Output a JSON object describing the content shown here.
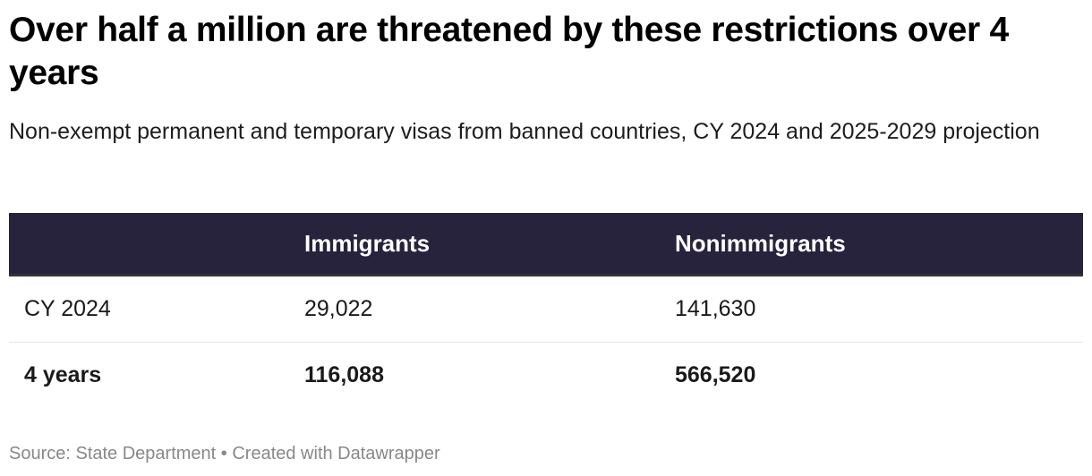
{
  "title": "Over half a million are threatened by these restrictions over 4 years",
  "subtitle": "Non-exempt permanent and temporary visas from banned countries, CY 2024 and 2025-2029 projection",
  "table": {
    "headers": [
      "",
      "Immigrants",
      "Nonimmigrants"
    ],
    "rows": [
      {
        "label": "CY 2024",
        "immigrants": "29,022",
        "nonimmigrants": "141,630"
      },
      {
        "label": "4 years",
        "immigrants": "116,088",
        "nonimmigrants": "566,520"
      }
    ]
  },
  "footer": "Source: State Department • Created with Datawrapper",
  "colors": {
    "header_bg": "#27233d",
    "header_text": "#ffffff"
  },
  "chart_data": {
    "type": "table",
    "title": "Over half a million are threatened by these restrictions over 4 years",
    "subtitle": "Non-exempt permanent and temporary visas from banned countries, CY 2024 and 2025-2029 projection",
    "columns": [
      "",
      "Immigrants",
      "Nonimmigrants"
    ],
    "rows": [
      [
        "CY 2024",
        29022,
        141630
      ],
      [
        "4 years",
        116088,
        566520
      ]
    ],
    "source": "State Department"
  }
}
